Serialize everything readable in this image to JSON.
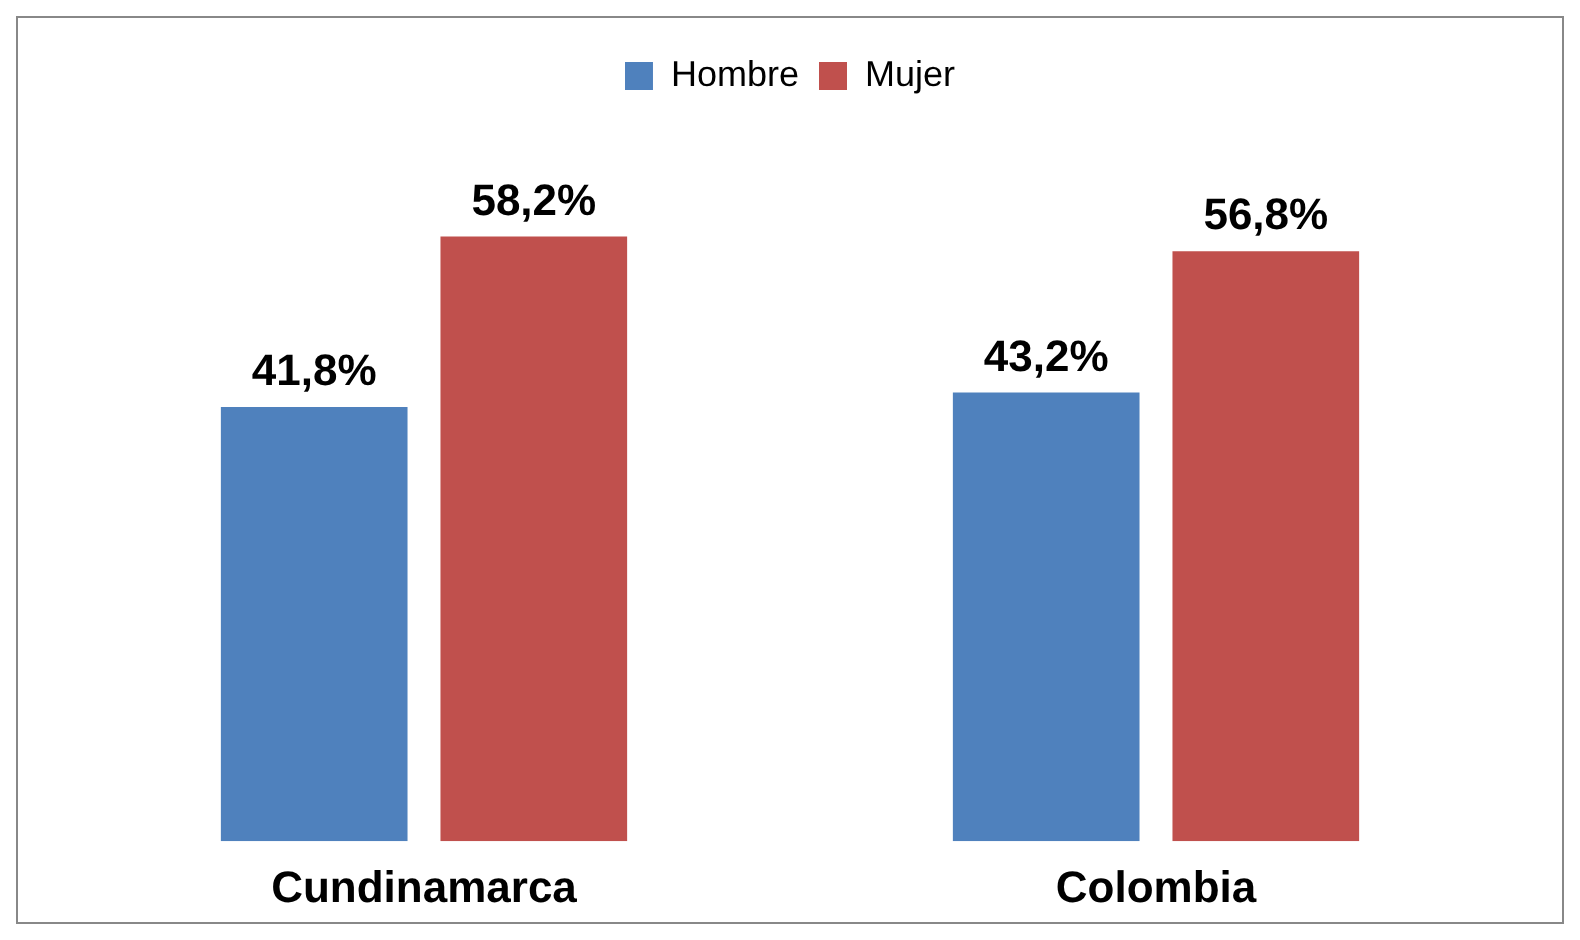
{
  "chart_data": {
    "type": "bar",
    "categories": [
      "Cundinamarca",
      "Colombia"
    ],
    "series": [
      {
        "name": "Hombre",
        "color": "#4f81bd",
        "values": [
          41.8,
          43.2
        ],
        "value_labels": [
          "41,8%",
          "43,2%"
        ]
      },
      {
        "name": "Mujer",
        "color": "#c0504d",
        "values": [
          58.2,
          56.8
        ],
        "value_labels": [
          "58,2%",
          "56,8%"
        ]
      }
    ],
    "legend": "top",
    "grid": false
  }
}
